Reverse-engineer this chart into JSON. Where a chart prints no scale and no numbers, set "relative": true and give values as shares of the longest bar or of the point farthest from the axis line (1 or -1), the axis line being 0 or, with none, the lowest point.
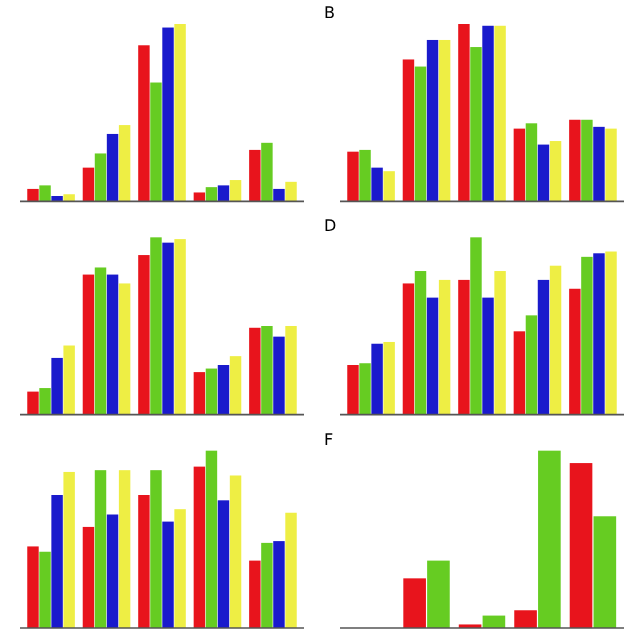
{
  "chart_data": [
    {
      "type": "bar",
      "relative": true,
      "categories": [
        null,
        null,
        null,
        null,
        null
      ],
      "series": [
        {
          "color": "#e8141c",
          "values": [
            0.07,
            0.19,
            0.88,
            0.05,
            0.29
          ]
        },
        {
          "color": "#66cc22",
          "values": [
            0.09,
            0.27,
            0.67,
            0.08,
            0.33
          ]
        },
        {
          "color": "#1a1acc",
          "values": [
            0.03,
            0.38,
            0.98,
            0.09,
            0.07
          ]
        },
        {
          "color": "#eeee44",
          "values": [
            0.04,
            0.43,
            1,
            0.12,
            0.11
          ]
        }
      ]
    },
    {
      "type": "bar",
      "relative": true,
      "annotations": [
        "B"
      ],
      "categories": [
        null,
        null,
        null,
        null,
        null
      ],
      "series": [
        {
          "color": "#e8141c",
          "values": [
            0.28,
            0.8,
            1,
            0.41,
            0.46
          ]
        },
        {
          "color": "#66cc22",
          "values": [
            0.29,
            0.76,
            0.87,
            0.44,
            0.46
          ]
        },
        {
          "color": "#1a1acc",
          "values": [
            0.19,
            0.91,
            0.99,
            0.32,
            0.42
          ]
        },
        {
          "color": "#eeee44",
          "values": [
            0.17,
            0.91,
            0.99,
            0.34,
            0.41
          ]
        }
      ]
    },
    {
      "type": "bar",
      "relative": true,
      "categories": [
        null,
        null,
        null,
        null,
        null
      ],
      "series": [
        {
          "color": "#e8141c",
          "values": [
            0.13,
            0.79,
            0.9,
            0.24,
            0.49
          ]
        },
        {
          "color": "#66cc22",
          "values": [
            0.15,
            0.83,
            1,
            0.26,
            0.5
          ]
        },
        {
          "color": "#1a1acc",
          "values": [
            0.32,
            0.79,
            0.97,
            0.28,
            0.44
          ]
        },
        {
          "color": "#eeee44",
          "values": [
            0.39,
            0.74,
            0.99,
            0.33,
            0.5
          ]
        }
      ]
    },
    {
      "type": "bar",
      "relative": true,
      "annotations": [
        "D"
      ],
      "categories": [
        null,
        null,
        null,
        null,
        null
      ],
      "series": [
        {
          "color": "#e8141c",
          "values": [
            0.28,
            0.74,
            0.76,
            0.47,
            0.71
          ]
        },
        {
          "color": "#66cc22",
          "values": [
            0.29,
            0.81,
            1,
            0.56,
            0.89
          ]
        },
        {
          "color": "#1a1acc",
          "values": [
            0.4,
            0.66,
            0.66,
            0.76,
            0.91
          ]
        },
        {
          "color": "#eeee44",
          "values": [
            0.41,
            0.76,
            0.81,
            0.84,
            0.92
          ]
        }
      ]
    },
    {
      "type": "bar",
      "relative": true,
      "categories": [
        null,
        null,
        null,
        null,
        null
      ],
      "series": [
        {
          "color": "#e8141c",
          "values": [
            0.46,
            0.57,
            0.75,
            0.91,
            0.38
          ]
        },
        {
          "color": "#66cc22",
          "values": [
            0.43,
            0.89,
            0.89,
            1,
            0.48
          ]
        },
        {
          "color": "#1a1acc",
          "values": [
            0.75,
            0.64,
            0.6,
            0.72,
            0.49
          ]
        },
        {
          "color": "#eeee44",
          "values": [
            0.88,
            0.89,
            0.67,
            0.86,
            0.65
          ]
        }
      ]
    },
    {
      "type": "bar",
      "relative": true,
      "annotations": [
        "F"
      ],
      "categories": [
        null,
        null,
        null,
        null,
        null
      ],
      "series": [
        {
          "color": "#e8141c",
          "values": [
            0,
            0.28,
            0.02,
            0.1,
            0.93
          ]
        },
        {
          "color": "#66cc22",
          "values": [
            0,
            0.38,
            0.07,
            1,
            0.63
          ]
        }
      ]
    }
  ]
}
